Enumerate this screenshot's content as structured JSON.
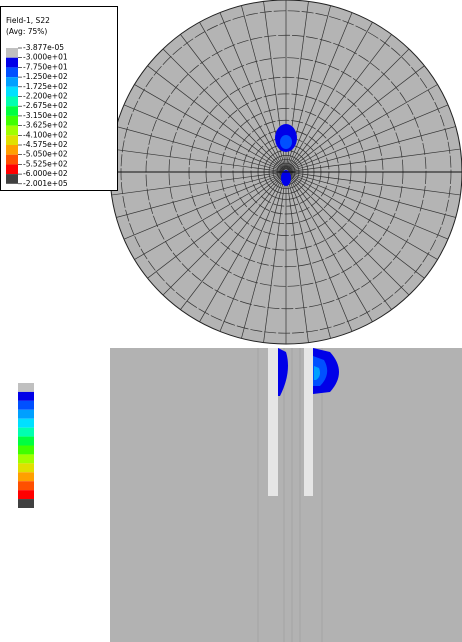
{
  "legend": {
    "title": "Field-1, S22",
    "subtitle": "(Avg: 75%)",
    "labels": [
      "-3.877e-05",
      "-3.000e+01",
      "-7.750e+01",
      "-1.250e+02",
      "-1.725e+02",
      "-2.200e+02",
      "-2.675e+02",
      "-3.150e+02",
      "-3.625e+02",
      "-4.100e+02",
      "-4.575e+02",
      "-5.050e+02",
      "-5.525e+02",
      "-6.000e+02",
      "-2.001e+05"
    ],
    "colors": [
      "#c0c0c0",
      "#0000e8",
      "#0050ff",
      "#00a0ff",
      "#00e0ff",
      "#00ffb0",
      "#00ff40",
      "#40ff00",
      "#a0ff00",
      "#e0e000",
      "#ffa000",
      "#ff5000",
      "#ff0000",
      "#404040"
    ]
  }
}
